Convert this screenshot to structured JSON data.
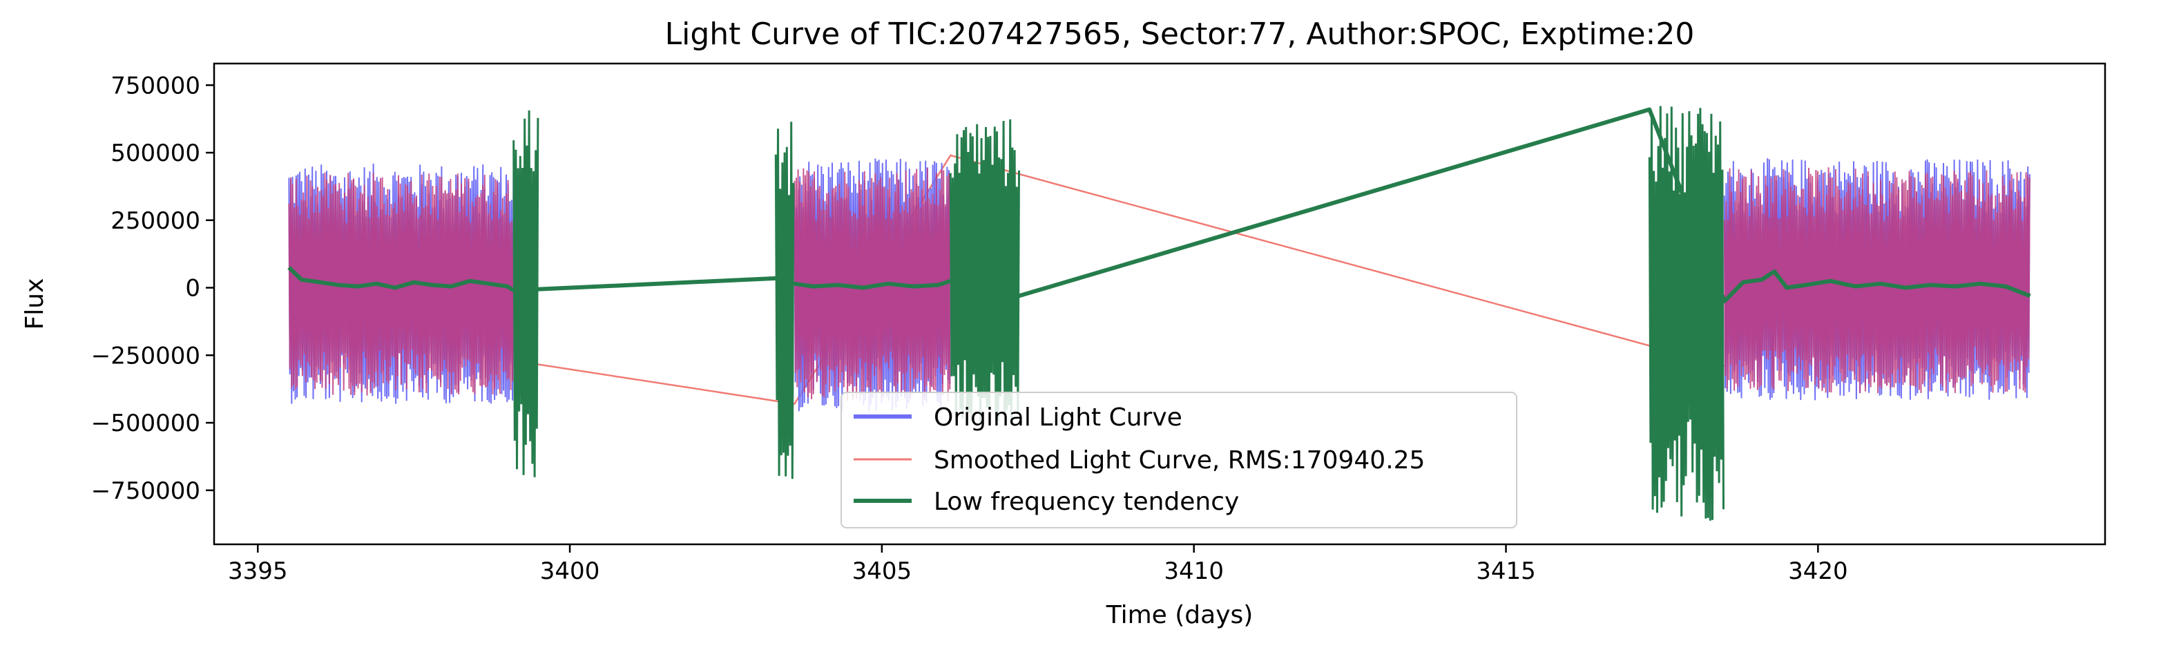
{
  "chart_data": {
    "type": "line",
    "title": "Light Curve of TIC:207427565, Sector:77, Author:SPOC, Exptime:20",
    "xlabel": "Time (days)",
    "ylabel": "Flux",
    "xlim": [
      3394.3,
      3424.6
    ],
    "ylim": [
      -950000,
      830000
    ],
    "x_ticks": [
      3395,
      3400,
      3405,
      3410,
      3415,
      3420
    ],
    "x_tick_labels": [
      "3395",
      "3400",
      "3405",
      "3410",
      "3415",
      "3420"
    ],
    "y_ticks": [
      750000,
      500000,
      250000,
      0,
      -250000,
      -500000,
      -750000
    ],
    "y_tick_labels": [
      "750000",
      "500000",
      "250000",
      "0",
      "−250000",
      "−500000",
      "−750000"
    ],
    "grid": false,
    "legend_position": "lower center",
    "colors": {
      "original": "#6f6ff5",
      "smoothed": "#f07b74",
      "overlap": "#c13b7c",
      "tendency": "#257d4c"
    },
    "series": [
      {
        "name": "Original Light Curve",
        "color": "#6f6ff5",
        "segments": [
          {
            "x_start": 3395.5,
            "x_end": 3399.1,
            "amp_pos": 460000,
            "amp_neg": 430000
          },
          {
            "x_start": 3403.6,
            "x_end": 3406.1,
            "amp_pos": 480000,
            "amp_neg": 460000
          },
          {
            "x_start": 3418.5,
            "x_end": 3423.4,
            "amp_pos": 480000,
            "amp_neg": 420000
          }
        ]
      },
      {
        "name": "Smoothed Light Curve, RMS:170940.25",
        "color": "#f07b74",
        "connector_points": [
          [
            3399.1,
            -270000
          ],
          [
            3403.6,
            -430000
          ],
          [
            3406.1,
            490000
          ],
          [
            3418.5,
            -290000
          ]
        ]
      },
      {
        "name": "Low frequency tendency",
        "color": "#257d4c",
        "points": [
          [
            3395.5,
            75000
          ],
          [
            3395.7,
            30000
          ],
          [
            3396.0,
            20000
          ],
          [
            3396.3,
            10000
          ],
          [
            3396.6,
            5000
          ],
          [
            3396.9,
            15000
          ],
          [
            3397.2,
            0
          ],
          [
            3397.5,
            20000
          ],
          [
            3397.8,
            10000
          ],
          [
            3398.1,
            5000
          ],
          [
            3398.4,
            25000
          ],
          [
            3398.7,
            15000
          ],
          [
            3399.0,
            5000
          ],
          [
            3399.1,
            -10000
          ],
          [
            3403.3,
            35000
          ],
          [
            3403.6,
            15000
          ],
          [
            3403.9,
            5000
          ],
          [
            3404.3,
            10000
          ],
          [
            3404.7,
            0
          ],
          [
            3405.1,
            15000
          ],
          [
            3405.5,
            5000
          ],
          [
            3405.9,
            10000
          ],
          [
            3406.1,
            25000
          ],
          [
            3407.2,
            -30000
          ],
          [
            3417.3,
            660000
          ],
          [
            3418.5,
            -50000
          ],
          [
            3418.8,
            20000
          ],
          [
            3419.1,
            30000
          ],
          [
            3419.3,
            60000
          ],
          [
            3419.5,
            0
          ],
          [
            3419.8,
            10000
          ],
          [
            3420.2,
            25000
          ],
          [
            3420.6,
            5000
          ],
          [
            3421.0,
            15000
          ],
          [
            3421.4,
            0
          ],
          [
            3421.8,
            10000
          ],
          [
            3422.2,
            5000
          ],
          [
            3422.6,
            15000
          ],
          [
            3423.0,
            5000
          ],
          [
            3423.4,
            -30000
          ]
        ],
        "dense_segments": [
          {
            "x_start": 3399.1,
            "x_end": 3399.5,
            "ymin": -730000,
            "ymax": 680000
          },
          {
            "x_start": 3403.3,
            "x_end": 3403.6,
            "ymin": -720000,
            "ymax": 640000
          },
          {
            "x_start": 3406.1,
            "x_end": 3407.2,
            "ymin": -500000,
            "ymax": 630000
          },
          {
            "x_start": 3417.3,
            "x_end": 3418.5,
            "ymin": -870000,
            "ymax": 680000
          }
        ]
      }
    ]
  }
}
